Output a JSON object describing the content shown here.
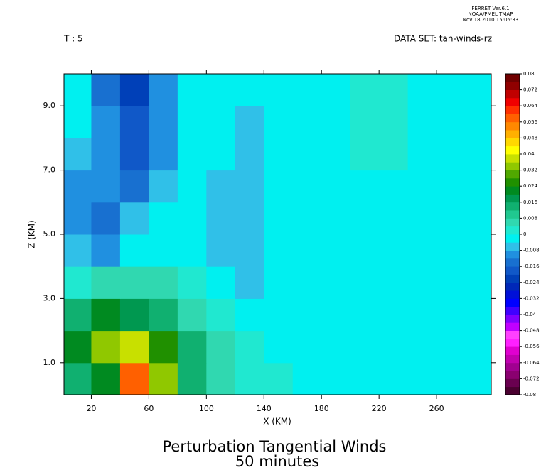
{
  "header": {
    "program": "FERRET  Ver.6.1",
    "org": "NOAA/PMEL TMAP",
    "date": "Nov 18 2010 15:05:33",
    "time_label": "T : 5",
    "dataset": "DATA SET: tan-winds-rz"
  },
  "chart_data": {
    "type": "contour",
    "title": "Perturbation Tangential Winds",
    "subtitle": "50 minutes",
    "x_label": "X (KM)",
    "y_label": "Z (KM)",
    "xlim": [
      1,
      298
    ],
    "ylim": [
      0,
      10
    ],
    "xticks": [
      20,
      60,
      100,
      140,
      180,
      220,
      260
    ],
    "yticks": [
      {
        "value": 1,
        "label": "1.0"
      },
      {
        "value": 3,
        "label": "3.0"
      },
      {
        "value": 5,
        "label": "5.0"
      },
      {
        "value": 7,
        "label": "7.0"
      },
      {
        "value": 9,
        "label": "9.0"
      }
    ],
    "x": [
      10,
      30,
      50,
      70,
      90,
      110,
      130,
      150,
      170,
      190,
      210,
      230,
      250,
      270,
      290
    ],
    "y": [
      0.5,
      1.5,
      2.5,
      3.5,
      4.5,
      5.5,
      6.5,
      7.5,
      8.5,
      9.5
    ],
    "z": [
      [
        0.012,
        0.02,
        0.056,
        0.032,
        0.012,
        0.004,
        0.002,
        0,
        -0.002,
        -0.002,
        -0.002,
        -0.002,
        -0.002,
        -0.002,
        -0.002
      ],
      [
        0.02,
        0.032,
        0.036,
        0.024,
        0.012,
        0.004,
        0,
        -0.002,
        -0.002,
        -0.002,
        -0.002,
        -0.002,
        -0.002,
        -0.002,
        -0.002
      ],
      [
        0.012,
        0.02,
        0.018,
        0.012,
        0.006,
        0.002,
        -0.002,
        -0.002,
        -0.002,
        -0.002,
        -0.002,
        -0.002,
        -0.002,
        -0.002,
        -0.002
      ],
      [
        0.002,
        0.006,
        0.008,
        0.006,
        0.002,
        -0.004,
        -0.006,
        -0.004,
        -0.002,
        -0.002,
        -0.002,
        -0.002,
        -0.002,
        -0.002,
        -0.002
      ],
      [
        -0.008,
        -0.012,
        -0.004,
        -0.002,
        -0.002,
        -0.006,
        -0.006,
        -0.004,
        -0.002,
        -0.002,
        -0.002,
        -0.002,
        -0.002,
        -0.002,
        -0.002
      ],
      [
        -0.012,
        -0.016,
        -0.008,
        -0.004,
        -0.004,
        -0.006,
        -0.007,
        -0.004,
        -0.002,
        -0.002,
        -0.002,
        -0.002,
        -0.002,
        -0.002,
        -0.002
      ],
      [
        -0.01,
        -0.012,
        -0.014,
        -0.008,
        -0.004,
        -0.006,
        -0.007,
        -0.004,
        -0.002,
        -0.002,
        -0.002,
        -0.002,
        -0.002,
        -0.002,
        -0.002
      ],
      [
        -0.006,
        -0.01,
        -0.018,
        -0.01,
        -0.004,
        -0.004,
        -0.006,
        -0.003,
        -0.002,
        -0.002,
        0,
        0,
        -0.002,
        -0.002,
        -0.002
      ],
      [
        -0.004,
        -0.012,
        -0.02,
        -0.01,
        -0.004,
        -0.004,
        -0.005,
        -0.002,
        -0.002,
        -0.002,
        0,
        0,
        -0.002,
        -0.002,
        -0.002
      ],
      [
        -0.004,
        -0.014,
        -0.022,
        -0.01,
        -0.004,
        -0.002,
        -0.002,
        -0.002,
        -0.002,
        -0.002,
        0,
        0,
        -0.002,
        -0.002,
        -0.002
      ]
    ],
    "clim": [
      -0.08,
      0.08
    ],
    "cticks": [
      -0.08,
      -0.072,
      -0.064,
      -0.056,
      -0.048,
      -0.04,
      -0.032,
      -0.024,
      -0.016,
      -0.008,
      0,
      0.008,
      0.016,
      0.024,
      0.032,
      0.04,
      0.048,
      0.056,
      0.064,
      0.072,
      0.08
    ],
    "colors": [
      "#4a0030",
      "#6a0050",
      "#8a0070",
      "#a00090",
      "#c000b0",
      "#e000d0",
      "#ff20ff",
      "#ff40ff",
      "#c000ff",
      "#8000ff",
      "#4000ff",
      "#0000ff",
      "#0010d8",
      "#0028b8",
      "#0040b8",
      "#1058c8",
      "#1870d0",
      "#2090e0",
      "#30c0e8",
      "#00f0f0",
      "#20e8d0",
      "#30d8b0",
      "#20c890",
      "#10b070",
      "#009850",
      "#008a20",
      "#209000",
      "#50a800",
      "#90c800",
      "#c8e000",
      "#ffff00",
      "#ffd800",
      "#ffb000",
      "#ff8800",
      "#ff6000",
      "#ff3000",
      "#f00000",
      "#c00000",
      "#900000",
      "#700000"
    ]
  }
}
